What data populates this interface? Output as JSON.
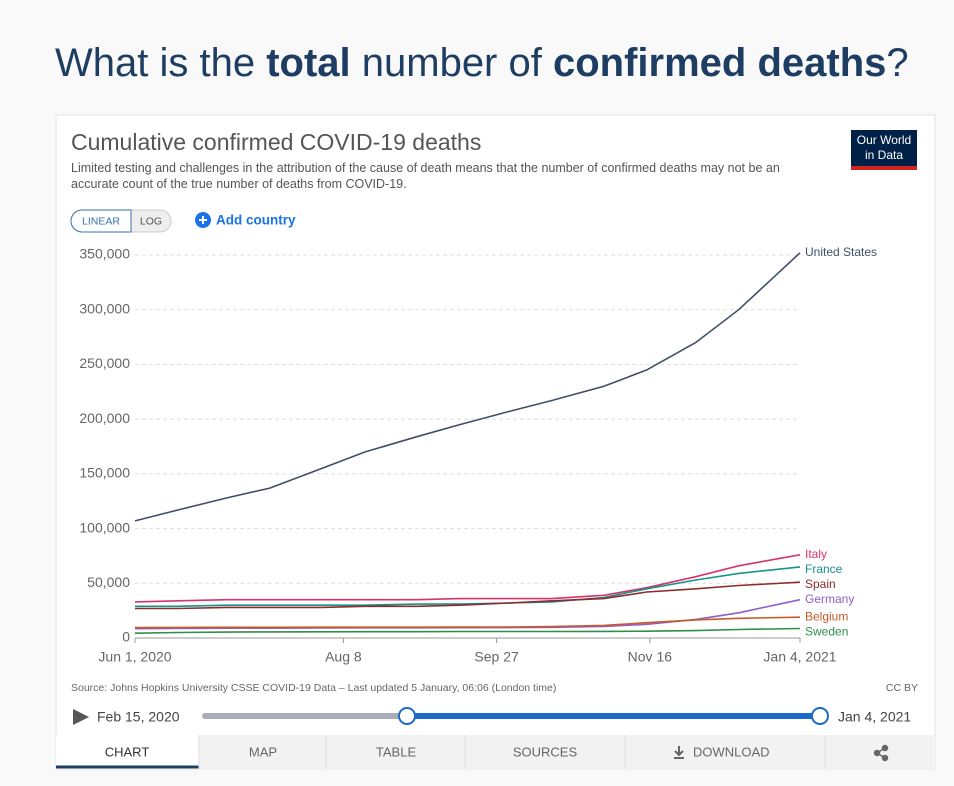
{
  "headline": {
    "parts": [
      "What is the ",
      "total",
      " number of ",
      "confirmed deaths",
      "?"
    ]
  },
  "controls": {
    "linear": "LINEAR",
    "log": "LOG",
    "add_country": "Add country"
  },
  "logo": {
    "line1": "Our World",
    "line2": "in Data"
  },
  "footer": {
    "license": "CC BY"
  },
  "timeline": {
    "start": "Feb 15, 2020",
    "end": "Jan 4, 2021"
  },
  "tabs": [
    "CHART",
    "MAP",
    "TABLE",
    "SOURCES",
    "DOWNLOAD"
  ],
  "chart_data": {
    "type": "line",
    "title": "Cumulative confirmed COVID-19 deaths",
    "subtitle": "Limited testing and challenges in the attribution of the cause of death means that the number of confirmed deaths may not be an accurate count of the true number of deaths from COVID-19.",
    "source": "Source: Johns Hopkins University CSSE COVID-19 Data – Last updated 5 January, 06:06 (London time)",
    "scale": "linear",
    "grid": true,
    "x": [
      "2020-06-01",
      "2020-06-15",
      "2020-07-01",
      "2020-07-15",
      "2020-08-01",
      "2020-08-15",
      "2020-09-01",
      "2020-09-15",
      "2020-10-01",
      "2020-10-15",
      "2020-11-01",
      "2020-11-15",
      "2020-12-01",
      "2020-12-15",
      "2021-01-04"
    ],
    "xlim": [
      "2020-06-01",
      "2021-01-04"
    ],
    "xticks": [
      {
        "value": "2020-06-01",
        "label": "Jun 1, 2020"
      },
      {
        "value": "2020-08-08",
        "label": "Aug 8"
      },
      {
        "value": "2020-09-27",
        "label": "Sep 27"
      },
      {
        "value": "2020-11-16",
        "label": "Nov 16"
      },
      {
        "value": "2021-01-04",
        "label": "Jan 4, 2021"
      }
    ],
    "ylim": [
      0,
      350000
    ],
    "yticks": [
      0,
      {
        "value": 50000,
        "label": "50,000"
      },
      {
        "value": 100000,
        "label": "100,000"
      },
      {
        "value": 150000,
        "label": "150,000"
      },
      {
        "value": 200000,
        "label": "200,000"
      },
      {
        "value": 250000,
        "label": "250,000"
      },
      {
        "value": 300000,
        "label": "300,000"
      },
      {
        "value": 350000,
        "label": "350,000"
      }
    ],
    "series": [
      {
        "name": "United States",
        "color": "#3f4f66",
        "values": [
          107000,
          117000,
          128000,
          137000,
          155000,
          170000,
          184000,
          195000,
          207000,
          217000,
          230000,
          245000,
          270000,
          300000,
          352000
        ]
      },
      {
        "name": "Italy",
        "color": "#d6336c",
        "values": [
          33000,
          34000,
          35000,
          35000,
          35000,
          35000,
          35000,
          36000,
          36000,
          36000,
          39000,
          46000,
          56000,
          66000,
          76000
        ]
      },
      {
        "name": "France",
        "color": "#17928c",
        "values": [
          29000,
          29000,
          30000,
          30000,
          30000,
          30000,
          31000,
          31000,
          32000,
          33000,
          37000,
          45000,
          53000,
          59000,
          65000
        ]
      },
      {
        "name": "Spain",
        "color": "#8e2b2b",
        "values": [
          27000,
          27000,
          28000,
          28000,
          28000,
          29000,
          29000,
          30000,
          32000,
          34000,
          36000,
          42000,
          45000,
          48000,
          51000
        ]
      },
      {
        "name": "Germany",
        "color": "#8f5ec9",
        "values": [
          8500,
          8800,
          9000,
          9000,
          9200,
          9300,
          9300,
          9400,
          9500,
          9800,
          10500,
          12500,
          17000,
          23000,
          35000
        ]
      },
      {
        "name": "Belgium",
        "color": "#c85a2a",
        "values": [
          9500,
          9700,
          9800,
          9800,
          9900,
          9900,
          9900,
          10000,
          10000,
          10500,
          11500,
          14000,
          16500,
          18000,
          19000
        ]
      },
      {
        "name": "Sweden",
        "color": "#2f8f46",
        "values": [
          4400,
          5000,
          5400,
          5600,
          5700,
          5800,
          5800,
          5900,
          5900,
          5900,
          6000,
          6200,
          6800,
          7800,
          8700
        ]
      }
    ]
  }
}
